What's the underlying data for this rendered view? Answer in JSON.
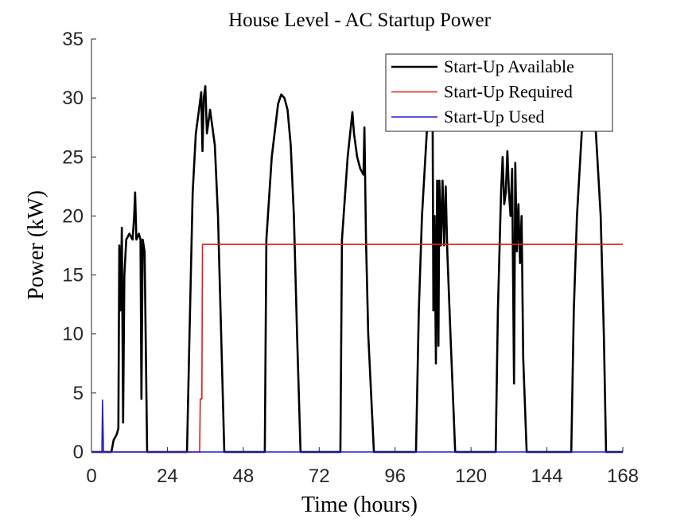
{
  "chart_data": {
    "type": "line",
    "title": "House Level - AC Startup Power",
    "x_label": "Time (hours)",
    "y_label": "Power (kW)",
    "xlim": [
      0,
      168
    ],
    "xticks": [
      0,
      24,
      48,
      72,
      96,
      120,
      144,
      168
    ],
    "ylim": [
      0,
      35
    ],
    "yticks": [
      0,
      5,
      10,
      15,
      20,
      25,
      30,
      35
    ],
    "legend": "northeast",
    "series": [
      {
        "name": "Start-Up Available",
        "color": "#000000",
        "x": [
          0,
          6.3,
          7,
          8,
          8.5,
          8.8,
          9.2,
          9.6,
          10,
          10.4,
          11,
          12,
          13,
          13.5,
          13.8,
          14.2,
          15,
          15.5,
          15.8,
          16.2,
          16.8,
          17.6,
          30.2,
          31,
          32,
          33,
          34,
          34.7,
          35.1,
          35.5,
          36,
          36.5,
          37.5,
          39,
          40,
          41,
          42,
          54.8,
          55.3,
          57,
          59,
          60,
          61,
          62,
          63,
          64,
          65,
          66.1,
          78.7,
          79.2,
          81,
          82.5,
          83,
          84,
          85,
          86,
          86.3,
          86.8,
          87.5,
          89.3,
          102.6,
          103.5,
          104.5,
          106,
          107,
          107.8,
          108.1,
          108.5,
          108.9,
          109.3,
          109.7,
          110,
          110.5,
          111,
          111.5,
          112,
          112.5,
          113.5,
          115,
          127.8,
          128.5,
          129.5,
          130,
          130.5,
          131,
          131.5,
          132,
          132.5,
          133,
          133.6,
          134,
          134.5,
          135,
          135.5,
          136,
          136.5,
          137.6,
          151.7,
          152.5,
          153.5,
          155,
          156.5,
          157.5,
          158.5,
          159.5,
          161,
          162,
          162.7,
          168
        ],
        "values": [
          0,
          0,
          1,
          1.5,
          2,
          17.5,
          12,
          19,
          2.5,
          15,
          18,
          18.5,
          18,
          20,
          22,
          18,
          18.5,
          18,
          4.5,
          18,
          17,
          0,
          0,
          10,
          22,
          27,
          29,
          30.5,
          25.5,
          30,
          31,
          27,
          29,
          26,
          20,
          10,
          0,
          0,
          18,
          25,
          29.5,
          30.3,
          30,
          29,
          26,
          20,
          10,
          0,
          0,
          18,
          25,
          28.8,
          27,
          25,
          24,
          23.5,
          27.5,
          18,
          10,
          0,
          0,
          12,
          20,
          27,
          31,
          33,
          12,
          20,
          7.5,
          23,
          9,
          23,
          17.5,
          23,
          17.5,
          22.5,
          17,
          10,
          0,
          0,
          12,
          22,
          25,
          21,
          22,
          25.5,
          22,
          20,
          24,
          5.8,
          24.5,
          17,
          21,
          16,
          20,
          8,
          0,
          0,
          12,
          20,
          27,
          29.5,
          30,
          29.5,
          27,
          20,
          10,
          0,
          0
        ]
      },
      {
        "name": "Start-Up Required",
        "color": "#e41a1c",
        "x": [
          0,
          34.2,
          34.4,
          34.9,
          35.1,
          168
        ],
        "values": [
          0,
          0,
          4.5,
          4.5,
          17.6,
          17.6
        ]
      },
      {
        "name": "Start-Up Used",
        "color": "#1f1fd0",
        "x": [
          0,
          3.3,
          3.5,
          3.8,
          168
        ],
        "values": [
          0,
          0,
          4.4,
          0,
          0
        ]
      }
    ]
  }
}
